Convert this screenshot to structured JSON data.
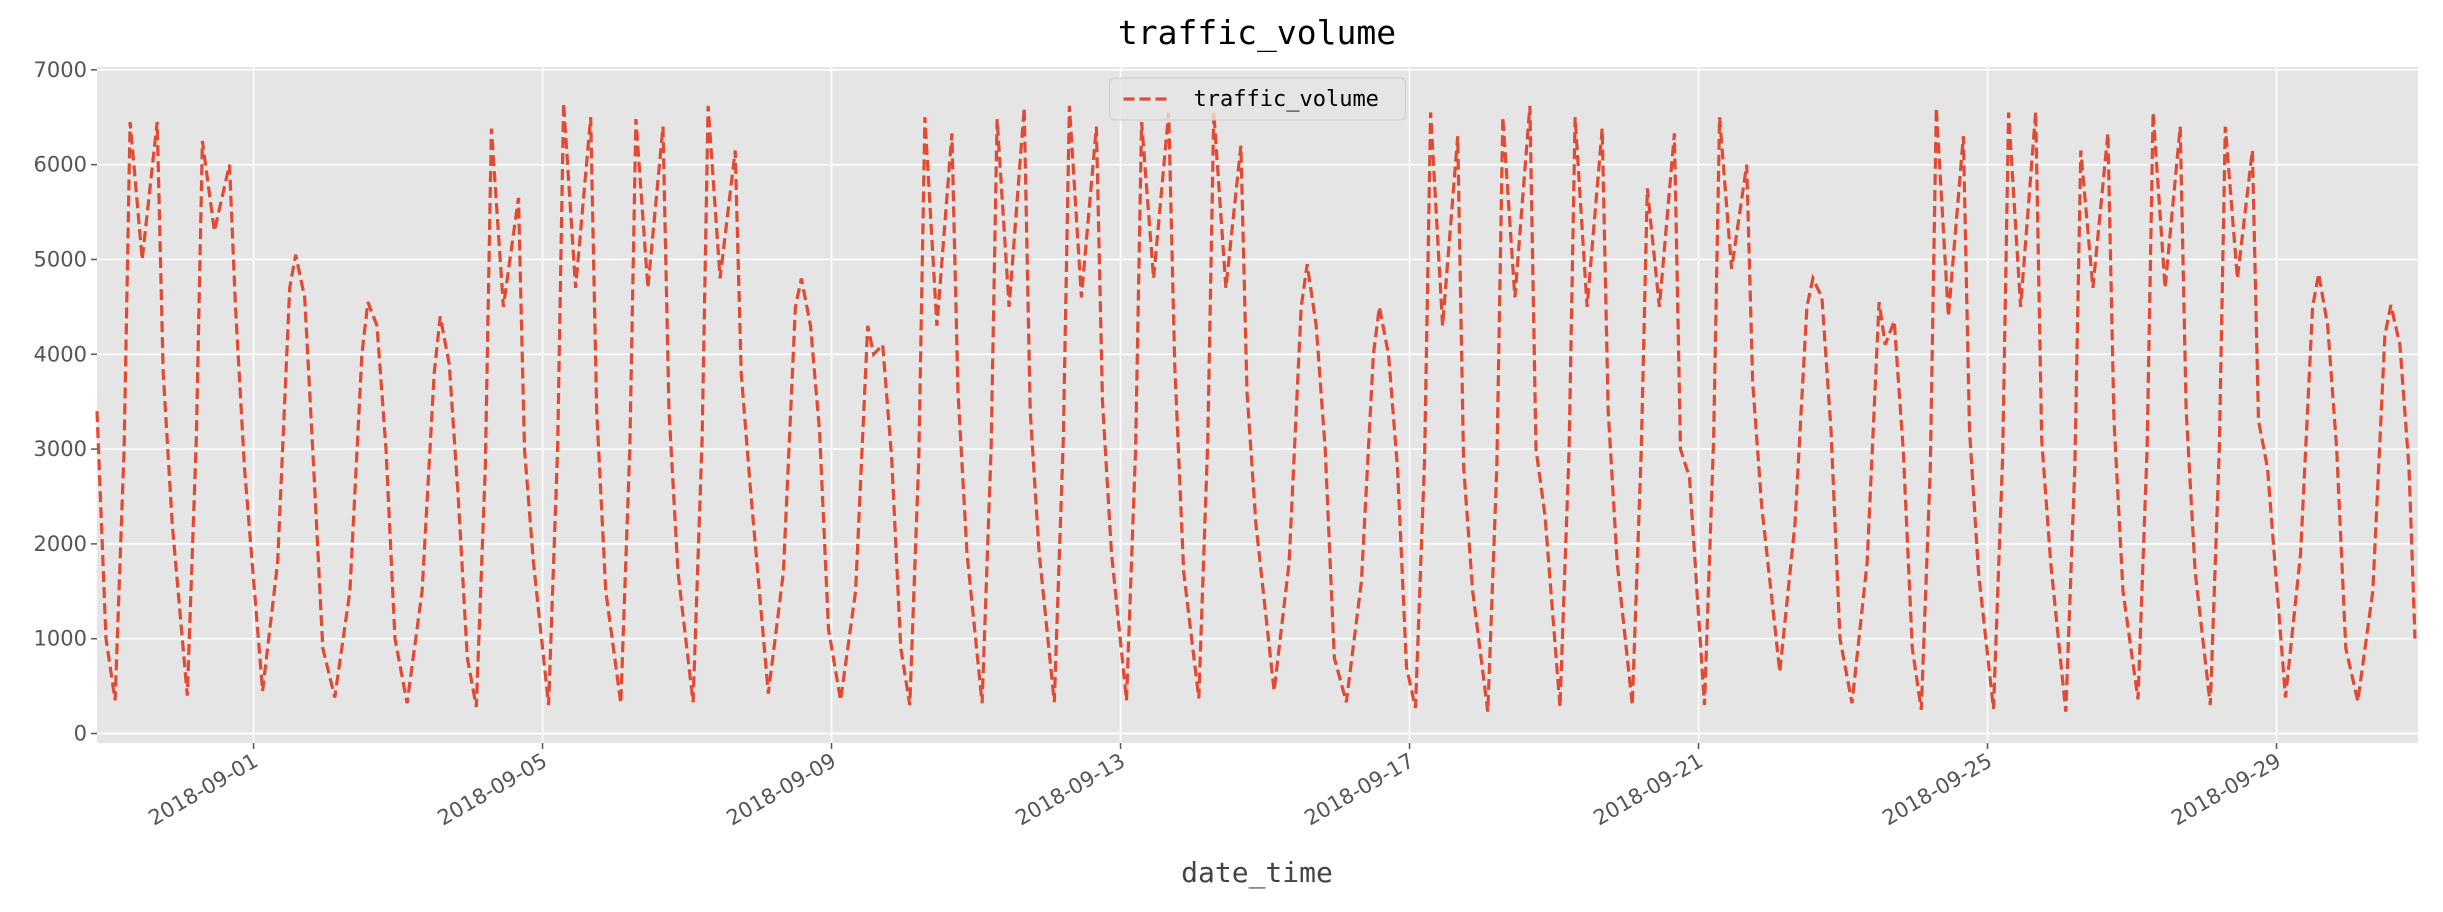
{
  "chart_data": {
    "type": "line",
    "title": "traffic_volume",
    "x_label": "date_time",
    "x": [
      "2018-08-29 20:00",
      "2018-08-29 23:00",
      "2018-08-30 02:00",
      "2018-08-30 05:00",
      "2018-08-30 07:00",
      "2018-08-30 11:00",
      "2018-08-30 16:00",
      "2018-08-30 18:00",
      "2018-08-30 21:00",
      "2018-08-31 02:00",
      "2018-08-31 05:00",
      "2018-08-31 07:00",
      "2018-08-31 11:00",
      "2018-08-31 16:00",
      "2018-08-31 18:00",
      "2018-08-31 21:00",
      "2018-09-01 03:00",
      "2018-09-01 08:00",
      "2018-09-01 12:00",
      "2018-09-01 14:00",
      "2018-09-01 17:00",
      "2018-09-01 20:00",
      "2018-09-01 23:00",
      "2018-09-02 03:00",
      "2018-09-02 08:00",
      "2018-09-02 12:00",
      "2018-09-02 14:00",
      "2018-09-02 17:00",
      "2018-09-02 20:00",
      "2018-09-02 23:00",
      "2018-09-03 03:00",
      "2018-09-03 08:00",
      "2018-09-03 12:00",
      "2018-09-03 14:00",
      "2018-09-03 17:00",
      "2018-09-03 20:00",
      "2018-09-03 23:00",
      "2018-09-04 02:00",
      "2018-09-04 05:00",
      "2018-09-04 07:00",
      "2018-09-04 11:00",
      "2018-09-04 16:00",
      "2018-09-04 18:00",
      "2018-09-04 21:00",
      "2018-09-05 02:00",
      "2018-09-05 05:00",
      "2018-09-05 07:00",
      "2018-09-05 11:00",
      "2018-09-05 16:00",
      "2018-09-05 18:00",
      "2018-09-05 21:00",
      "2018-09-06 02:00",
      "2018-09-06 05:00",
      "2018-09-06 07:00",
      "2018-09-06 11:00",
      "2018-09-06 16:00",
      "2018-09-06 18:00",
      "2018-09-06 21:00",
      "2018-09-07 02:00",
      "2018-09-07 05:00",
      "2018-09-07 07:00",
      "2018-09-07 11:00",
      "2018-09-07 16:00",
      "2018-09-07 18:00",
      "2018-09-07 21:00",
      "2018-09-08 03:00",
      "2018-09-08 08:00",
      "2018-09-08 12:00",
      "2018-09-08 14:00",
      "2018-09-08 17:00",
      "2018-09-08 20:00",
      "2018-09-08 23:00",
      "2018-09-09 03:00",
      "2018-09-09 08:00",
      "2018-09-09 12:00",
      "2018-09-09 14:00",
      "2018-09-09 17:00",
      "2018-09-09 20:00",
      "2018-09-09 23:00",
      "2018-09-10 02:00",
      "2018-09-10 05:00",
      "2018-09-10 07:00",
      "2018-09-10 11:00",
      "2018-09-10 16:00",
      "2018-09-10 18:00",
      "2018-09-10 21:00",
      "2018-09-11 02:00",
      "2018-09-11 05:00",
      "2018-09-11 07:00",
      "2018-09-11 11:00",
      "2018-09-11 16:00",
      "2018-09-11 18:00",
      "2018-09-11 21:00",
      "2018-09-12 02:00",
      "2018-09-12 05:00",
      "2018-09-12 07:00",
      "2018-09-12 11:00",
      "2018-09-12 16:00",
      "2018-09-12 18:00",
      "2018-09-12 21:00",
      "2018-09-13 02:00",
      "2018-09-13 05:00",
      "2018-09-13 07:00",
      "2018-09-13 11:00",
      "2018-09-13 16:00",
      "2018-09-13 18:00",
      "2018-09-13 21:00",
      "2018-09-14 02:00",
      "2018-09-14 05:00",
      "2018-09-14 07:00",
      "2018-09-14 11:00",
      "2018-09-14 16:00",
      "2018-09-14 18:00",
      "2018-09-14 21:00",
      "2018-09-15 03:00",
      "2018-09-15 08:00",
      "2018-09-15 12:00",
      "2018-09-15 14:00",
      "2018-09-15 17:00",
      "2018-09-15 20:00",
      "2018-09-15 23:00",
      "2018-09-16 03:00",
      "2018-09-16 08:00",
      "2018-09-16 12:00",
      "2018-09-16 14:00",
      "2018-09-16 17:00",
      "2018-09-16 20:00",
      "2018-09-16 23:00",
      "2018-09-17 02:00",
      "2018-09-17 05:00",
      "2018-09-17 07:00",
      "2018-09-17 11:00",
      "2018-09-17 16:00",
      "2018-09-17 18:00",
      "2018-09-17 21:00",
      "2018-09-18 02:00",
      "2018-09-18 05:00",
      "2018-09-18 07:00",
      "2018-09-18 11:00",
      "2018-09-18 16:00",
      "2018-09-18 18:00",
      "2018-09-18 21:00",
      "2018-09-19 02:00",
      "2018-09-19 05:00",
      "2018-09-19 07:00",
      "2018-09-19 11:00",
      "2018-09-19 16:00",
      "2018-09-19 18:00",
      "2018-09-19 21:00",
      "2018-09-20 02:00",
      "2018-09-20 05:00",
      "2018-09-20 07:00",
      "2018-09-20 11:00",
      "2018-09-20 16:00",
      "2018-09-20 18:00",
      "2018-09-20 21:00",
      "2018-09-21 02:00",
      "2018-09-21 05:00",
      "2018-09-21 07:00",
      "2018-09-21 11:00",
      "2018-09-21 16:00",
      "2018-09-21 18:00",
      "2018-09-21 21:00",
      "2018-09-22 03:00",
      "2018-09-22 08:00",
      "2018-09-22 12:00",
      "2018-09-22 14:00",
      "2018-09-22 17:00",
      "2018-09-22 20:00",
      "2018-09-22 23:00",
      "2018-09-23 03:00",
      "2018-09-23 08:00",
      "2018-09-23 12:00",
      "2018-09-23 14:00",
      "2018-09-23 17:00",
      "2018-09-23 20:00",
      "2018-09-23 23:00",
      "2018-09-24 02:00",
      "2018-09-24 05:00",
      "2018-09-24 07:00",
      "2018-09-24 11:00",
      "2018-09-24 16:00",
      "2018-09-24 18:00",
      "2018-09-24 21:00",
      "2018-09-25 02:00",
      "2018-09-25 05:00",
      "2018-09-25 07:00",
      "2018-09-25 11:00",
      "2018-09-25 16:00",
      "2018-09-25 18:00",
      "2018-09-25 21:00",
      "2018-09-26 02:00",
      "2018-09-26 05:00",
      "2018-09-26 07:00",
      "2018-09-26 11:00",
      "2018-09-26 16:00",
      "2018-09-26 18:00",
      "2018-09-26 21:00",
      "2018-09-27 02:00",
      "2018-09-27 05:00",
      "2018-09-27 07:00",
      "2018-09-27 11:00",
      "2018-09-27 16:00",
      "2018-09-27 18:00",
      "2018-09-27 21:00",
      "2018-09-28 02:00",
      "2018-09-28 05:00",
      "2018-09-28 07:00",
      "2018-09-28 11:00",
      "2018-09-28 16:00",
      "2018-09-28 18:00",
      "2018-09-28 21:00",
      "2018-09-29 03:00",
      "2018-09-29 08:00",
      "2018-09-29 12:00",
      "2018-09-29 14:00",
      "2018-09-29 17:00",
      "2018-09-29 20:00",
      "2018-09-29 23:00",
      "2018-09-30 03:00",
      "2018-09-30 08:00",
      "2018-09-30 12:00",
      "2018-09-30 14:00",
      "2018-09-30 17:00",
      "2018-09-30 20:00",
      "2018-09-30 22:00"
    ],
    "series": [
      {
        "name": "traffic_volume",
        "color": "#E24A33",
        "values": [
          3400,
          1000,
          350,
          3000,
          6450,
          5000,
          6450,
          3800,
          2200,
          400,
          3100,
          6250,
          5300,
          6000,
          4500,
          2800,
          450,
          1800,
          4700,
          5050,
          4600,
          2800,
          900,
          380,
          1500,
          4000,
          4550,
          4300,
          3000,
          1000,
          320,
          1500,
          3800,
          4400,
          3900,
          2500,
          800,
          280,
          2800,
          6380,
          4500,
          5650,
          3000,
          1800,
          300,
          3000,
          6650,
          4700,
          6500,
          3400,
          1500,
          320,
          3000,
          6480,
          4700,
          6400,
          3400,
          1700,
          330,
          3100,
          6620,
          4800,
          6150,
          3800,
          2600,
          420,
          1700,
          4500,
          4800,
          4300,
          3200,
          1100,
          350,
          1500,
          4300,
          4000,
          4100,
          2900,
          900,
          300,
          2900,
          6500,
          4300,
          6330,
          3600,
          1900,
          320,
          3000,
          6480,
          4500,
          6600,
          3400,
          1900,
          330,
          3100,
          6620,
          4600,
          6400,
          3500,
          1900,
          350,
          3000,
          6450,
          4800,
          6550,
          3900,
          1700,
          370,
          3100,
          6550,
          4700,
          6200,
          3600,
          2200,
          450,
          1800,
          4500,
          4950,
          4300,
          3000,
          800,
          330,
          1600,
          4000,
          4500,
          4000,
          2800,
          700,
          270,
          2900,
          6550,
          4300,
          6300,
          2800,
          1500,
          230,
          2800,
          6500,
          4600,
          6620,
          3000,
          2300,
          280,
          3000,
          6500,
          4500,
          6380,
          3400,
          1800,
          300,
          3000,
          5750,
          4500,
          6330,
          3000,
          2700,
          300,
          3100,
          6500,
          4900,
          6000,
          3700,
          2400,
          650,
          2200,
          4500,
          4800,
          4600,
          3200,
          1000,
          320,
          1800,
          4550,
          4100,
          4350,
          3000,
          900,
          250,
          2800,
          6600,
          4400,
          6300,
          3200,
          1700,
          260,
          2900,
          6550,
          4500,
          6560,
          3100,
          1800,
          230,
          2800,
          6150,
          4700,
          6330,
          3300,
          1500,
          360,
          3000,
          6550,
          4700,
          6400,
          3400,
          1700,
          300,
          3000,
          6400,
          4800,
          6150,
          3300,
          2800,
          380,
          1900,
          4500,
          4850,
          4300,
          3000,
          900,
          340,
          1500,
          4200,
          4520,
          4100,
          2800,
          1000
        ]
      }
    ],
    "xlim": [
      "2018-08-29 20:00",
      "2018-09-30 23:00"
    ],
    "xticks": [
      "2018-09-01",
      "2018-09-05",
      "2018-09-09",
      "2018-09-13",
      "2018-09-17",
      "2018-09-21",
      "2018-09-25",
      "2018-09-29"
    ],
    "ylim": [
      -100,
      7030
    ],
    "yticks": [
      0,
      1000,
      2000,
      3000,
      4000,
      5000,
      6000,
      7000
    ],
    "grid": true,
    "legend": "upper center"
  }
}
